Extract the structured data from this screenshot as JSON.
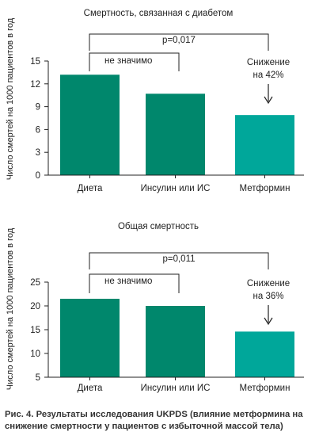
{
  "colors": {
    "bar_dark": "#00876c",
    "bar_light": "#00a79a",
    "axis": "#222222"
  },
  "charts": [
    {
      "type": "bar",
      "title": "Смертность, связанная с диабетом",
      "ylabel": "Число смертей на 1000 пациентов в год",
      "categories": [
        "Диета",
        "Инсулин или ИС",
        "Метформин"
      ],
      "values": [
        13.2,
        10.7,
        7.9
      ],
      "ylim": [
        0,
        15
      ],
      "yticks": [
        0,
        3,
        6,
        9,
        12,
        15
      ],
      "brackets": [
        {
          "from": 0,
          "to": 2,
          "label": "p=0,017"
        },
        {
          "from": 0,
          "to": 1,
          "label": "не значимо"
        }
      ],
      "annotation": {
        "lines": [
          "Снижение",
          "на 42%"
        ]
      }
    },
    {
      "type": "bar",
      "title": "Общая смертность",
      "ylabel": "Число смертей на 1000 пациентов в год",
      "categories": [
        "Диета",
        "Инсулин или ИС",
        "Метформин"
      ],
      "values": [
        21.5,
        20.0,
        14.6
      ],
      "ylim": [
        5,
        25
      ],
      "yticks": [
        5,
        10,
        15,
        20,
        25
      ],
      "brackets": [
        {
          "from": 0,
          "to": 2,
          "label": "p=0,011"
        },
        {
          "from": 0,
          "to": 1,
          "label": "не значимо"
        }
      ],
      "annotation": {
        "lines": [
          "Снижение",
          "на 36%"
        ]
      }
    }
  ],
  "caption": "Рис. 4. Результаты исследования UKPDS (влияние метформина на снижение смертности у пациентов с избыточной массой тела)"
}
